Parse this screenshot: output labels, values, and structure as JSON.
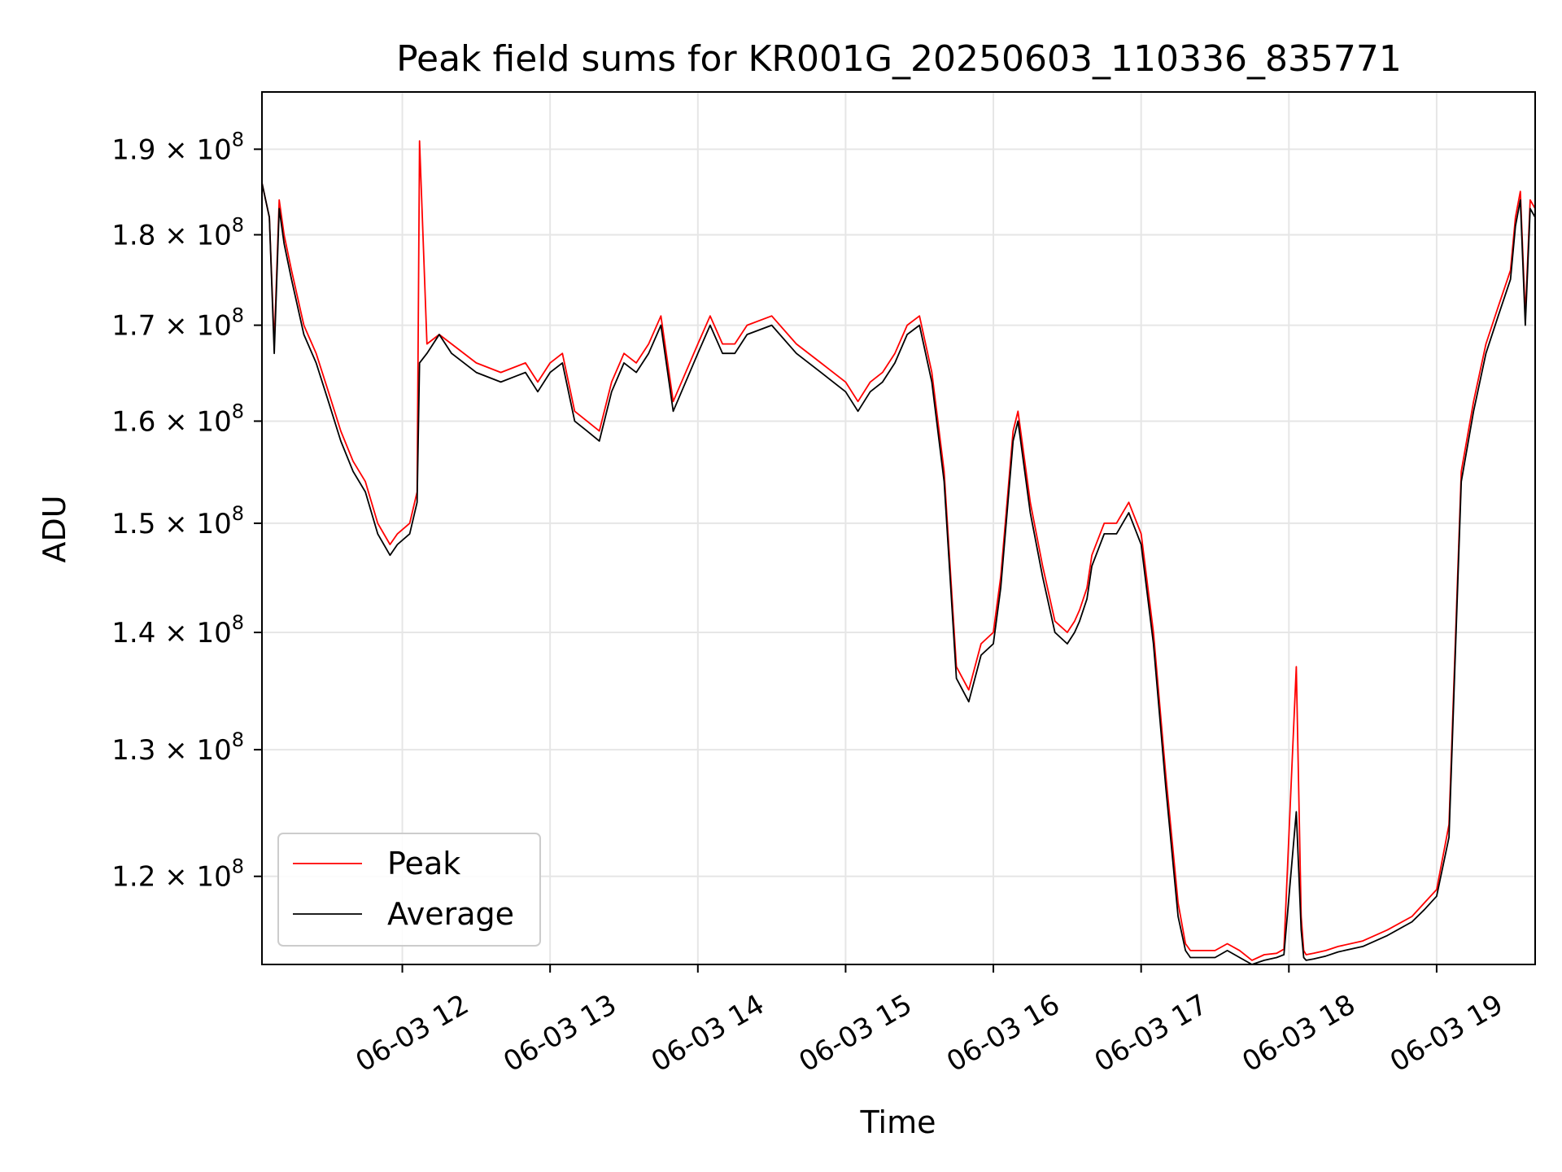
{
  "chart_data": {
    "type": "line",
    "title": "Peak field sums for KR001G_20250603_110336_835771",
    "xlabel": "Time",
    "ylabel": "ADU",
    "yscale": "log",
    "xlim": [
      "2025-06-03 11:03",
      "2025-06-03 19:40"
    ],
    "ylim": [
      113500000,
      197000000
    ],
    "grid": true,
    "legend_position": "lower-left",
    "x_ticks": [
      "06-03 12",
      "06-03 13",
      "06-03 14",
      "06-03 15",
      "06-03 16",
      "06-03 17",
      "06-03 18",
      "06-03 19"
    ],
    "y_ticks": [
      {
        "value": 120000000,
        "mantissa": "1.2",
        "exp": "8"
      },
      {
        "value": 130000000,
        "mantissa": "1.3",
        "exp": "8"
      },
      {
        "value": 140000000,
        "mantissa": "1.4",
        "exp": "8"
      },
      {
        "value": 150000000,
        "mantissa": "1.5",
        "exp": "8"
      },
      {
        "value": 160000000,
        "mantissa": "1.6",
        "exp": "8"
      },
      {
        "value": 170000000,
        "mantissa": "1.7",
        "exp": "8"
      },
      {
        "value": 180000000,
        "mantissa": "1.8",
        "exp": "8"
      },
      {
        "value": 190000000,
        "mantissa": "1.9",
        "exp": "8"
      }
    ],
    "x": [
      "11:03",
      "11:06",
      "11:08",
      "11:10",
      "11:12",
      "11:15",
      "11:20",
      "11:25",
      "11:30",
      "11:35",
      "11:40",
      "11:45",
      "11:50",
      "11:55",
      "11:58",
      "12:03",
      "12:06",
      "12:07",
      "12:10",
      "12:15",
      "12:20",
      "12:30",
      "12:40",
      "12:50",
      "12:55",
      "13:00",
      "13:05",
      "13:10",
      "13:15",
      "13:20",
      "13:25",
      "13:30",
      "13:35",
      "13:40",
      "13:45",
      "13:50",
      "14:00",
      "14:05",
      "14:10",
      "14:15",
      "14:20",
      "14:30",
      "14:40",
      "14:50",
      "15:00",
      "15:05",
      "15:10",
      "15:15",
      "15:20",
      "15:25",
      "15:30",
      "15:35",
      "15:40",
      "15:45",
      "15:50",
      "15:55",
      "16:00",
      "16:03",
      "16:08",
      "16:10",
      "16:15",
      "16:20",
      "16:25",
      "16:30",
      "16:33",
      "16:35",
      "16:38",
      "16:40",
      "16:45",
      "16:50",
      "16:55",
      "17:00",
      "17:05",
      "17:10",
      "17:15",
      "17:18",
      "17:20",
      "17:25",
      "17:30",
      "17:35",
      "17:40",
      "17:45",
      "17:50",
      "17:55",
      "17:58",
      "18:03",
      "18:05",
      "18:06",
      "18:07",
      "18:10",
      "18:15",
      "18:20",
      "18:30",
      "18:40",
      "18:50",
      "18:55",
      "19:00",
      "19:05",
      "19:10",
      "19:15",
      "19:20",
      "19:25",
      "19:30",
      "19:32",
      "19:34",
      "19:36",
      "19:38",
      "19:40"
    ],
    "series": [
      {
        "name": "Peak",
        "color": "#ff0000",
        "values": [
          186,
          182,
          168,
          184,
          180,
          176,
          170,
          167,
          163,
          159,
          156,
          154,
          150,
          148,
          149,
          150,
          153,
          191,
          168,
          169,
          168,
          166,
          165,
          166,
          164,
          166,
          167,
          161,
          160,
          159,
          164,
          167,
          166,
          168,
          171,
          162,
          168,
          171,
          168,
          168,
          170,
          171,
          168,
          166,
          164,
          162,
          164,
          165,
          167,
          170,
          171,
          165,
          155,
          137,
          135,
          139,
          140,
          145,
          159,
          161,
          152,
          146,
          141,
          140,
          141,
          142,
          144,
          147,
          150,
          150,
          152,
          149,
          140,
          128,
          118,
          115,
          114.5,
          114.5,
          114.5,
          115,
          114.5,
          113.8,
          114.2,
          114.3,
          114.6,
          137,
          117,
          114.5,
          114.2,
          114.3,
          114.5,
          114.8,
          115.2,
          116,
          117,
          118,
          119,
          124,
          155,
          162,
          168,
          172,
          176,
          182,
          185,
          171,
          184,
          183
        ]
      },
      {
        "name": "Average",
        "color": "#000000",
        "values": [
          186,
          182,
          167,
          183,
          179,
          175,
          169,
          166,
          162,
          158,
          155,
          153,
          149,
          147,
          148,
          149,
          152,
          166,
          167,
          169,
          167,
          165,
          164,
          165,
          163,
          165,
          166,
          160,
          159,
          158,
          163,
          166,
          165,
          167,
          170,
          161,
          167,
          170,
          167,
          167,
          169,
          170,
          167,
          165,
          163,
          161,
          163,
          164,
          166,
          169,
          170,
          164,
          154,
          136,
          134,
          138,
          139,
          144,
          158,
          160,
          151,
          145,
          140,
          139,
          140,
          141,
          143,
          146,
          149,
          149,
          151,
          148,
          139,
          127,
          117,
          114.5,
          114,
          114,
          114,
          114.5,
          114,
          113.5,
          113.8,
          114,
          114.2,
          125,
          116,
          114,
          113.8,
          113.9,
          114.1,
          114.4,
          114.8,
          115.6,
          116.6,
          117.5,
          118.5,
          123,
          154,
          161,
          167,
          171,
          175,
          181,
          184,
          170,
          183,
          182
        ]
      }
    ]
  }
}
